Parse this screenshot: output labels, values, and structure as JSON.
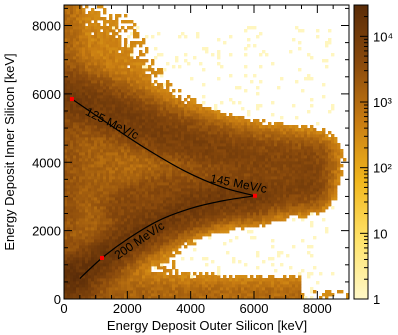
{
  "chart_data": {
    "type": "heatmap",
    "xlabel": "Energy Deposit Outer Silicon [keV]",
    "ylabel": "Energy Deposit Inner Silicon [keV]",
    "xlim": [
      0,
      9000
    ],
    "ylim": [
      0,
      8600
    ],
    "x_ticks": [
      "0",
      "2000",
      "4000",
      "6000",
      "8000"
    ],
    "y_ticks": [
      "0",
      "2000",
      "4000",
      "6000",
      "8000"
    ],
    "colorbar": {
      "scale": "log",
      "range": [
        1,
        30000
      ],
      "ticks": [
        {
          "value": 1,
          "label": "1"
        },
        {
          "value": 10,
          "label": "10"
        },
        {
          "value": 100,
          "label": "10²"
        },
        {
          "value": 1000,
          "label": "10³"
        },
        {
          "value": 10000,
          "label": "10⁴"
        }
      ],
      "colors": [
        "#fff8c8",
        "#ffe36a",
        "#f1b71d",
        "#c97d12",
        "#8a4a0c",
        "#5a2c08"
      ]
    },
    "curves": [
      {
        "label": "125 MeV/c",
        "points": [
          [
            250,
            5850
          ],
          [
            1200,
            5250
          ],
          [
            2500,
            4450
          ],
          [
            3800,
            3750
          ],
          [
            5000,
            3270
          ],
          [
            6030,
            3020
          ]
        ]
      },
      {
        "label": "145 MeV/c",
        "points": [
          [
            3800,
            3750
          ],
          [
            5000,
            3270
          ],
          [
            6030,
            3020
          ]
        ]
      },
      {
        "label": "200 MeV/c",
        "points": [
          [
            500,
            600
          ],
          [
            1200,
            1200
          ],
          [
            2000,
            1750
          ],
          [
            3000,
            2300
          ],
          [
            4000,
            2650
          ],
          [
            5000,
            2870
          ],
          [
            6030,
            3020
          ]
        ]
      }
    ],
    "markers": [
      {
        "x": 250,
        "y": 5850
      },
      {
        "x": 6030,
        "y": 3020
      },
      {
        "x": 1200,
        "y": 1200
      }
    ]
  }
}
